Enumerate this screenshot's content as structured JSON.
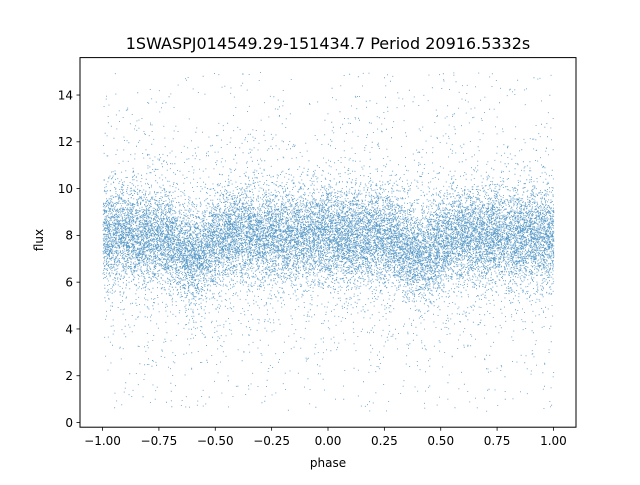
{
  "chart_data": {
    "type": "scatter",
    "title": "1SWASPJ014549.29-151434.7 Period 20916.5332s",
    "xlabel": "phase",
    "ylabel": "flux",
    "xlim": [
      -1.1,
      1.1
    ],
    "ylim": [
      -0.2,
      15.6
    ],
    "xticks": [
      -1.0,
      -0.75,
      -0.5,
      -0.25,
      0.0,
      0.25,
      0.5,
      0.75,
      1.0
    ],
    "xtick_labels": [
      "−1.00",
      "−0.75",
      "−0.50",
      "−0.25",
      "0.00",
      "0.25",
      "0.50",
      "0.75",
      "1.00"
    ],
    "yticks": [
      0,
      2,
      4,
      6,
      8,
      10,
      12,
      14
    ],
    "ytick_labels": [
      "0",
      "2",
      "4",
      "6",
      "8",
      "10",
      "12",
      "14"
    ],
    "grid": false,
    "legend": "none",
    "marker_color": "#1f77b4",
    "series": [
      {
        "x_range": [
          -1.0,
          1.0
        ],
        "y_range": [
          0.5,
          15.0
        ],
        "central_flux": 8.0,
        "core_spread": 1.0,
        "dips": [
          {
            "phase": -0.6,
            "flux_min": 7.0
          },
          {
            "phase": 0.4,
            "flux_min": 7.0
          }
        ],
        "approx_point_count": 90000
      }
    ]
  }
}
